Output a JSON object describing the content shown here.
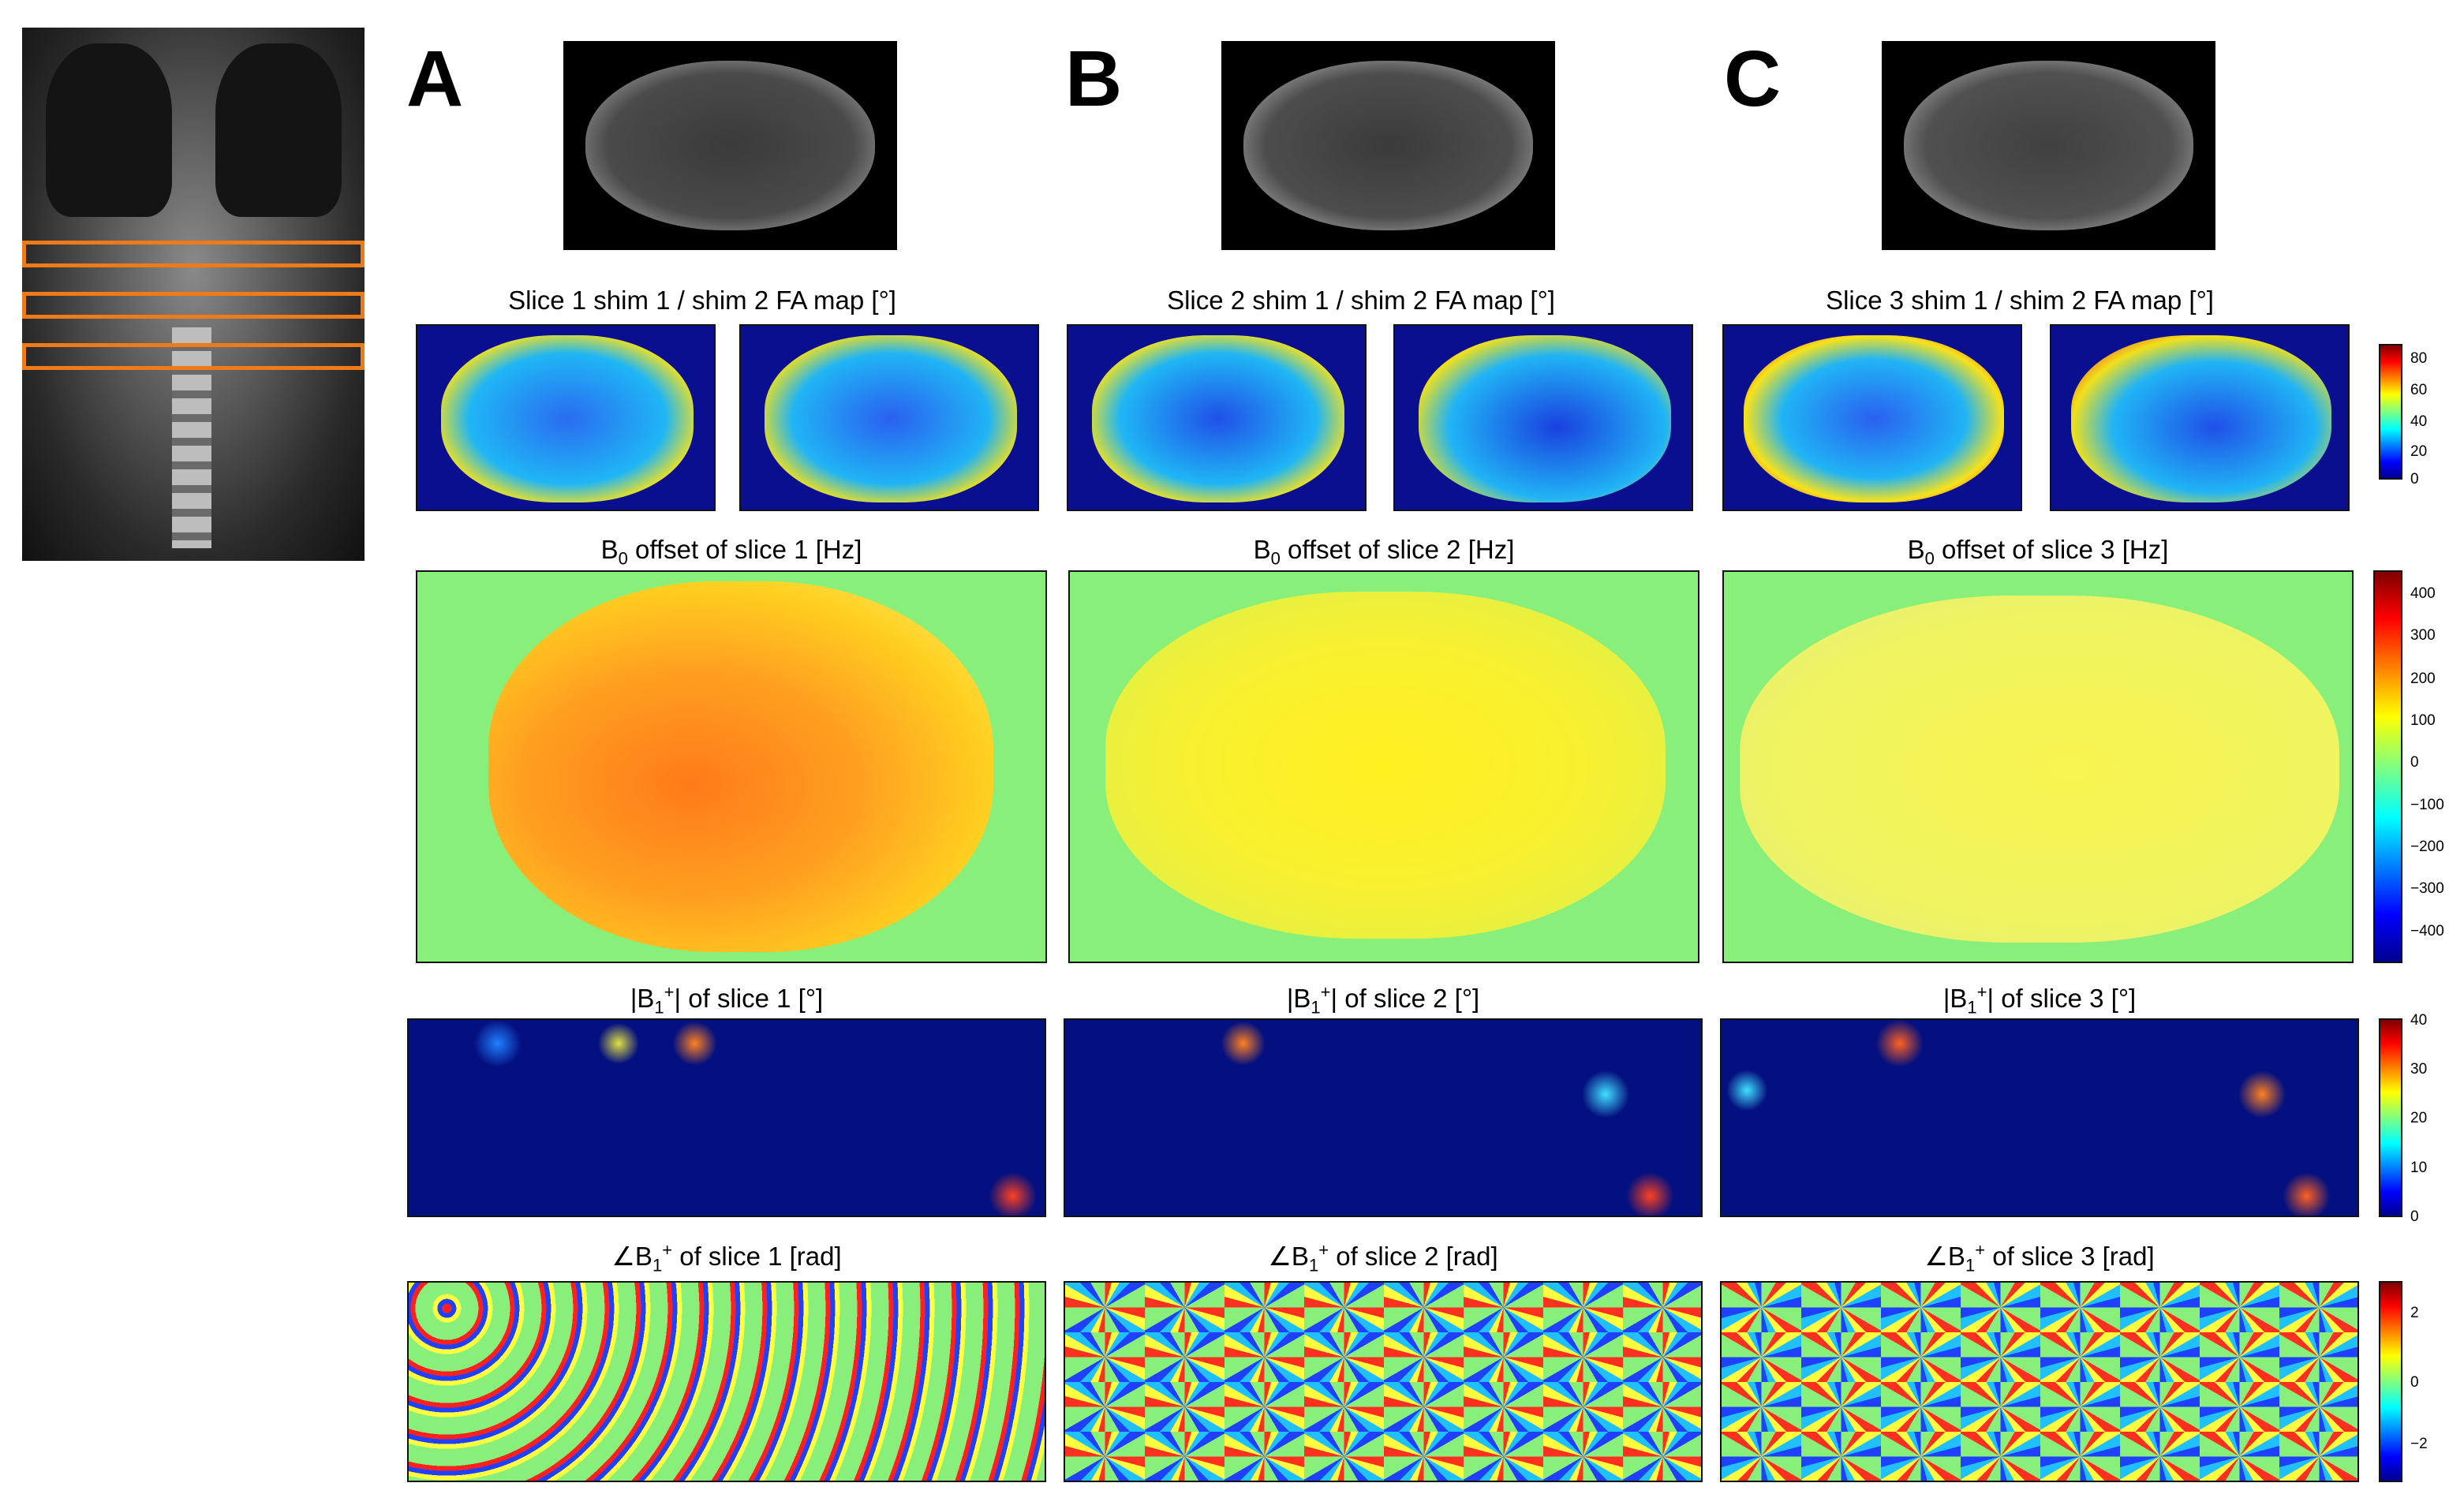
{
  "panels": [
    {
      "letter": "A",
      "fa_title": "Slice 1 shim 1  /  shim 2 FA map [°]",
      "b0_title_pre": "B",
      "b0_sub": "0",
      "b0_title_post": " offset of slice 1 [Hz]",
      "b1mag_title_pre": "|B",
      "b1mag_sub": "1",
      "b1mag_sup": "+",
      "b1mag_title_post": "| of slice 1 [°]",
      "b1ph_title_pre": "∠B",
      "b1ph_sub": "1",
      "b1ph_sup": "+",
      "b1ph_title_post": " of slice 1 [rad]"
    },
    {
      "letter": "B",
      "fa_title": "Slice 2 shim 1  /  shim 2 FA map [°]",
      "b0_title_pre": "B",
      "b0_sub": "0",
      "b0_title_post": " offset of slice 2 [Hz]",
      "b1mag_title_pre": "|B",
      "b1mag_sub": "1",
      "b1mag_sup": "+",
      "b1mag_title_post": "| of slice 2 [°]",
      "b1ph_title_pre": "∠B",
      "b1ph_sub": "1",
      "b1ph_sup": "+",
      "b1ph_title_post": " of slice 2 [rad]"
    },
    {
      "letter": "C",
      "fa_title": "Slice 3 shim 1  /  shim 2 FA map [°]",
      "b0_title_pre": "B",
      "b0_sub": "0",
      "b0_title_post": " offset of slice 3 [Hz]",
      "b1mag_title_pre": "|B",
      "b1mag_sub": "1",
      "b1mag_sup": "+",
      "b1mag_title_post": "| of slice 3 [°]",
      "b1ph_title_pre": "∠B",
      "b1ph_sub": "1",
      "b1ph_sup": "+",
      "b1ph_title_post": " of slice 3 [rad]"
    }
  ],
  "colorbars": {
    "fa": {
      "ticks": [
        "80",
        "60",
        "40",
        "20",
        "0"
      ]
    },
    "b0": {
      "ticks": [
        "400",
        "300",
        "200",
        "100",
        "0",
        "−100",
        "−200",
        "−300",
        "−400"
      ]
    },
    "b1mag": {
      "ticks": [
        "40",
        "30",
        "20",
        "10",
        "0"
      ]
    },
    "b1ph": {
      "ticks": [
        "2",
        "0",
        "−2"
      ]
    }
  },
  "colors": {
    "slice_box": "#ef7a1a",
    "jet_dark_blue": "#00008f",
    "jet_green": "#80ff80",
    "jet_dark_red": "#800000"
  }
}
